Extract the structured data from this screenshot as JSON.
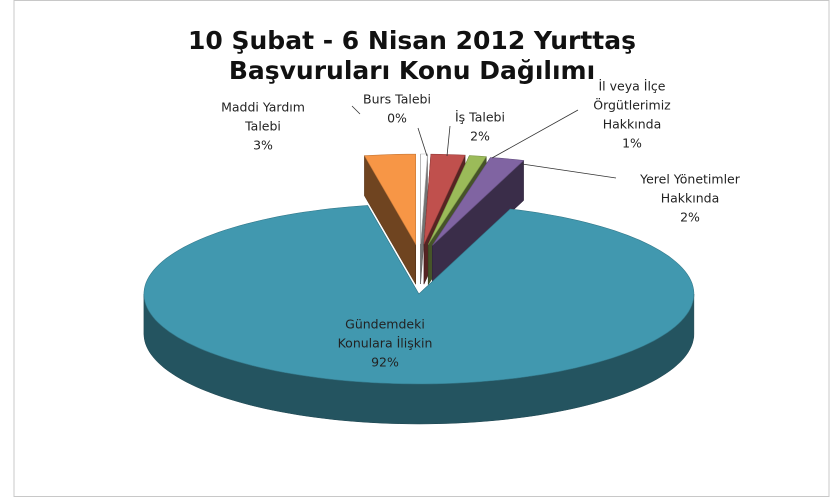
{
  "chart_data": {
    "type": "pie3d",
    "title": [
      "10 Şubat - 6 Nisan 2012 Yurttaş",
      "Başvuruları Konu Dağılımı"
    ],
    "categories": [
      [
        "Burs Talebi"
      ],
      [
        "İş Talebi"
      ],
      [
        "İl veya İlçe",
        "Örgütlerimiz",
        "Hakkında"
      ],
      [
        "Yerel Yönetimler",
        "Hakkında"
      ],
      [
        "Gündemdeki",
        "Konulara İlişkin"
      ],
      [
        "Maddi Yardım",
        "Talebi"
      ]
    ],
    "values": [
      0.4,
      2,
      1,
      2,
      92,
      3
    ],
    "value_labels": [
      "0%",
      "2%",
      "1%",
      "2%",
      "92%",
      "3%"
    ],
    "colors": [
      "#ffffff",
      "#c0504d",
      "#9bbb59",
      "#8064a2",
      "#4198af",
      "#f79646"
    ]
  }
}
